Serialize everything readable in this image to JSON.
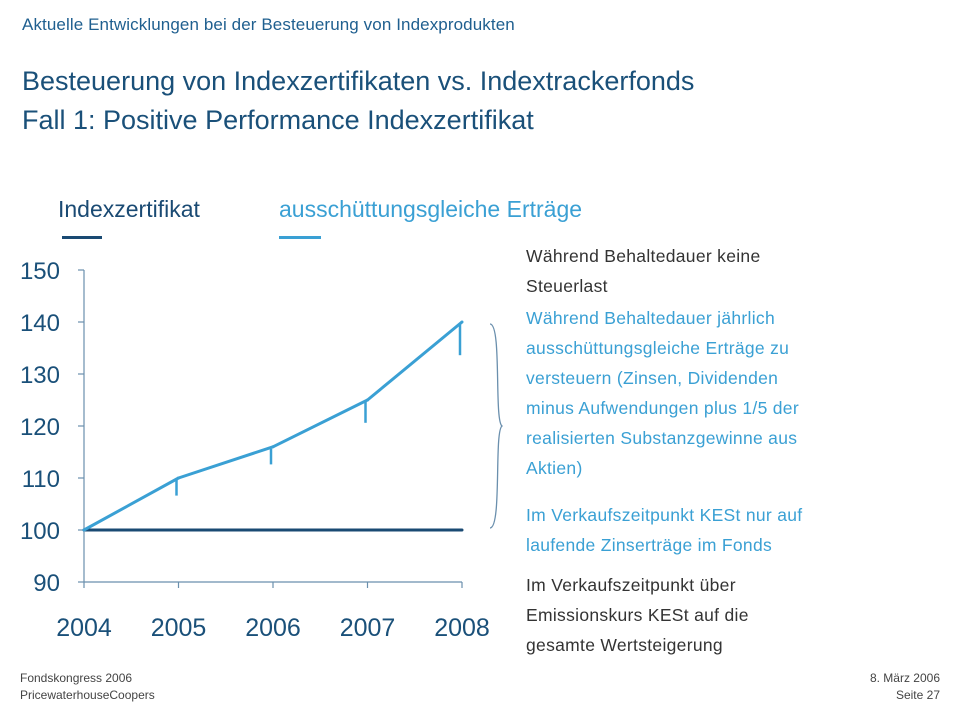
{
  "header": {
    "caption": "Aktuelle Entwicklungen bei der Besteuerung von Indexprodukten",
    "title_line1": "Besteuerung von Indexzertifikaten vs. Indextrackerfonds",
    "title_line2": "Fall 1: Positive Performance Indexzertifikat"
  },
  "colors": {
    "dark_blue": "#1a4a73",
    "light_blue": "#3aa0d4",
    "axis": "#6a8fad"
  },
  "chart_data": {
    "type": "line",
    "x": [
      "2004",
      "2005",
      "2006",
      "2007",
      "2008"
    ],
    "ylim": [
      90,
      150
    ],
    "yticks": [
      90,
      100,
      110,
      120,
      130,
      140,
      150
    ],
    "series": [
      {
        "name": "Indexzertifikat",
        "color": "#1a4a73",
        "values": [
          100,
          100,
          100,
          100,
          100
        ]
      },
      {
        "name": "ausschüttungsgleiche Erträge",
        "color": "#3aa0d4",
        "values": [
          100,
          110,
          116,
          125,
          140
        ]
      }
    ],
    "markers": {
      "description": "short vertical tick marks below the light-blue line at 2005–2008",
      "values": [
        110,
        116,
        125,
        140
      ],
      "lengths": [
        3,
        3,
        4,
        6
      ]
    },
    "grid": false,
    "legend": "top"
  },
  "side_notes": [
    {
      "style": "dark",
      "lines": [
        "Während Behaltedauer keine",
        "Steuerlast"
      ]
    },
    {
      "style": "light",
      "lines": [
        "Während Behaltedauer jährlich",
        "ausschüttungsgleiche Erträge zu",
        "versteuern (Zinsen, Dividenden",
        "minus Aufwendungen plus 1/5 der",
        "realisierten Substanzgewinne aus",
        "Aktien)"
      ]
    },
    {
      "style": "light",
      "lines": [
        "Im Verkaufszeitpunkt KESt nur auf",
        "laufende Zinserträge im Fonds"
      ]
    },
    {
      "style": "dark",
      "lines": [
        "Im Verkaufszeitpunkt über",
        "Emissionskurs KESt auf die",
        "gesamte Wertsteigerung"
      ]
    }
  ],
  "footer": {
    "left_line1": "Fondskongress 2006",
    "left_line2": "PricewaterhouseCoopers",
    "right_line1": "8. März 2006",
    "right_line2": "Seite 27"
  }
}
